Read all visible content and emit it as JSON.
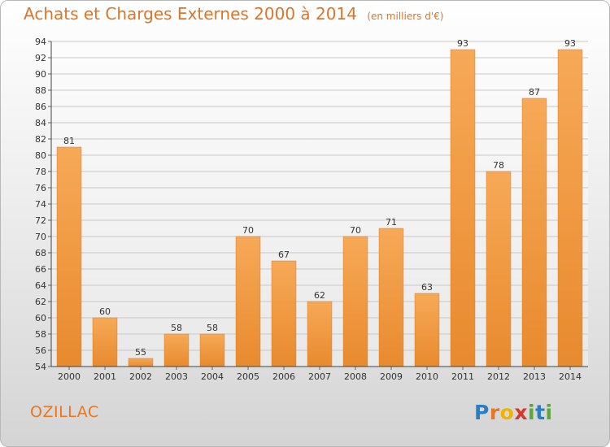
{
  "chart_data": {
    "type": "bar",
    "title": "Achats et Charges Externes 2000 à 2014",
    "subtitle": "(en milliers d'€)",
    "categories": [
      "2000",
      "2001",
      "2002",
      "2003",
      "2004",
      "2005",
      "2006",
      "2007",
      "2008",
      "2009",
      "2010",
      "2011",
      "2012",
      "2013",
      "2014"
    ],
    "values": [
      81,
      60,
      55,
      58,
      58,
      70,
      67,
      62,
      70,
      71,
      63,
      93,
      78,
      87,
      93
    ],
    "ylim": [
      54,
      94
    ],
    "yticks": [
      54,
      56,
      58,
      60,
      62,
      64,
      66,
      68,
      70,
      72,
      74,
      76,
      78,
      80,
      82,
      84,
      86,
      88,
      90,
      92,
      94
    ],
    "grid": true,
    "bar_color": "#e88a2e",
    "bar_color_light": "#f7a957"
  },
  "place_name": "OZILLAC",
  "logo": {
    "letters": [
      "P",
      "r",
      "o",
      "x",
      "i",
      "t",
      "i"
    ],
    "colors": [
      "#2a7fc4",
      "#e87722",
      "#f2b300",
      "#d8372b",
      "#58a83a",
      "#2a7fc4",
      "#58a83a"
    ]
  }
}
